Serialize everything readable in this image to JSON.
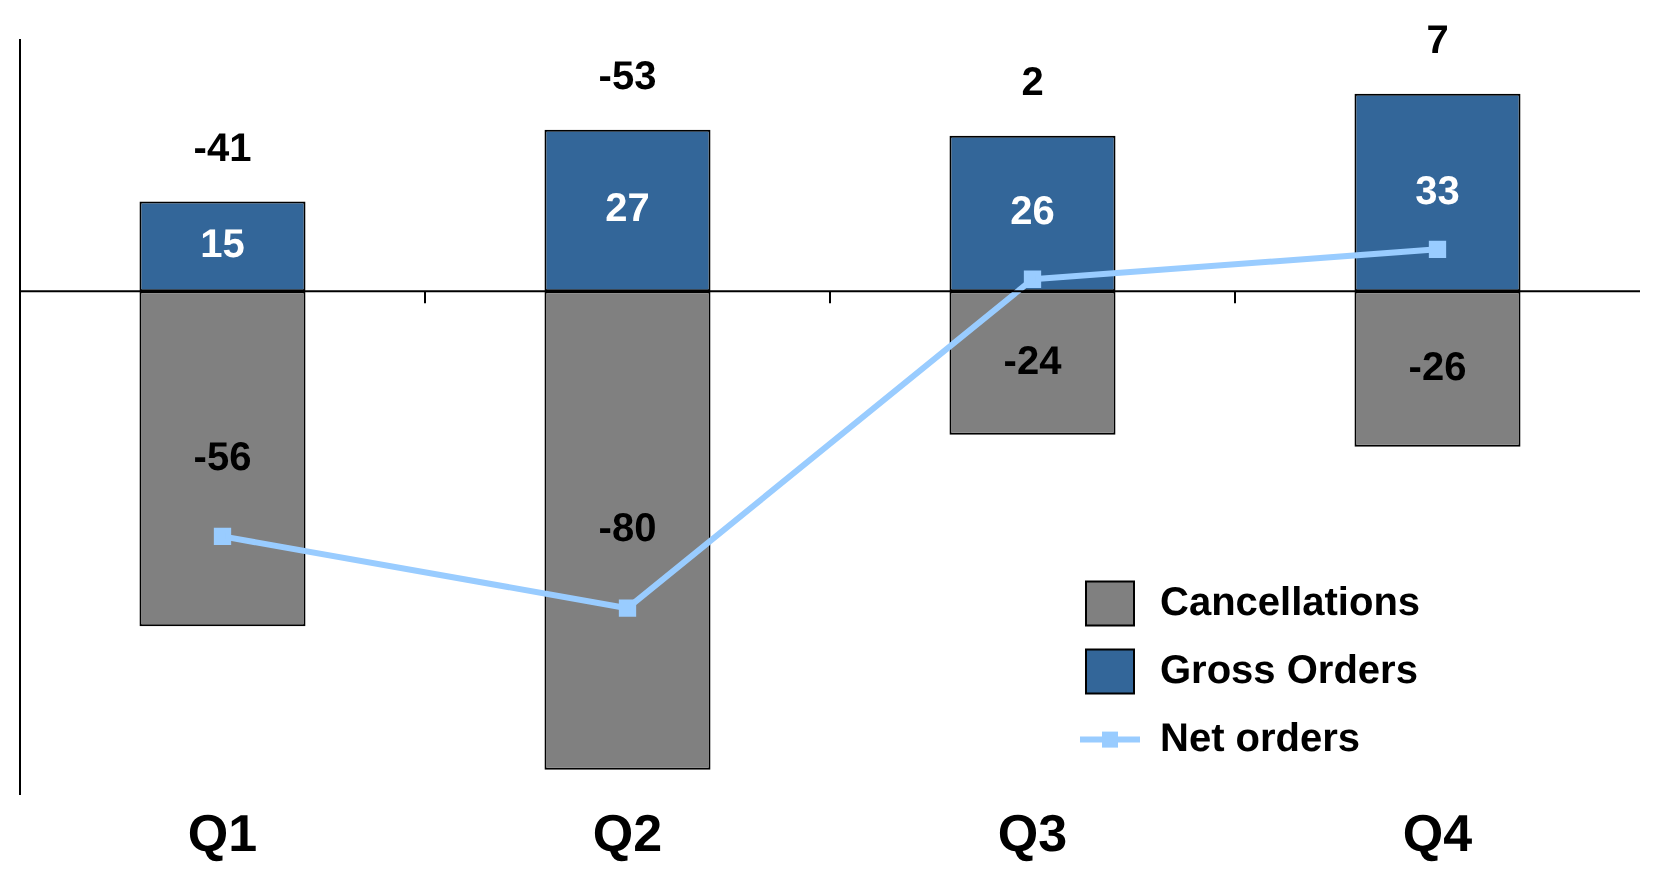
{
  "chart_data": {
    "type": "bar",
    "categories": [
      "Q1",
      "Q2",
      "Q3",
      "Q4"
    ],
    "stacked": true,
    "series": [
      {
        "name": "Cancellations",
        "color": "#808080",
        "values": [
          -56,
          -80,
          -24,
          -26
        ],
        "value_labels": [
          "-56",
          "-80",
          "-24",
          "-26"
        ]
      },
      {
        "name": "Gross Orders",
        "color": "#336699",
        "values": [
          15,
          27,
          26,
          33
        ],
        "value_labels": [
          "15",
          "27",
          "26",
          "33"
        ]
      },
      {
        "name": "Net orders",
        "type": "line",
        "color": "#99ccff",
        "values": [
          -41,
          -53,
          2,
          7
        ]
      }
    ],
    "annotations": [
      "-41",
      "-53",
      "2",
      "7"
    ],
    "ylim": [
      -84,
      42
    ],
    "tick_labels": "x",
    "legend": "bottom right",
    "marker": "square",
    "grid": false
  }
}
